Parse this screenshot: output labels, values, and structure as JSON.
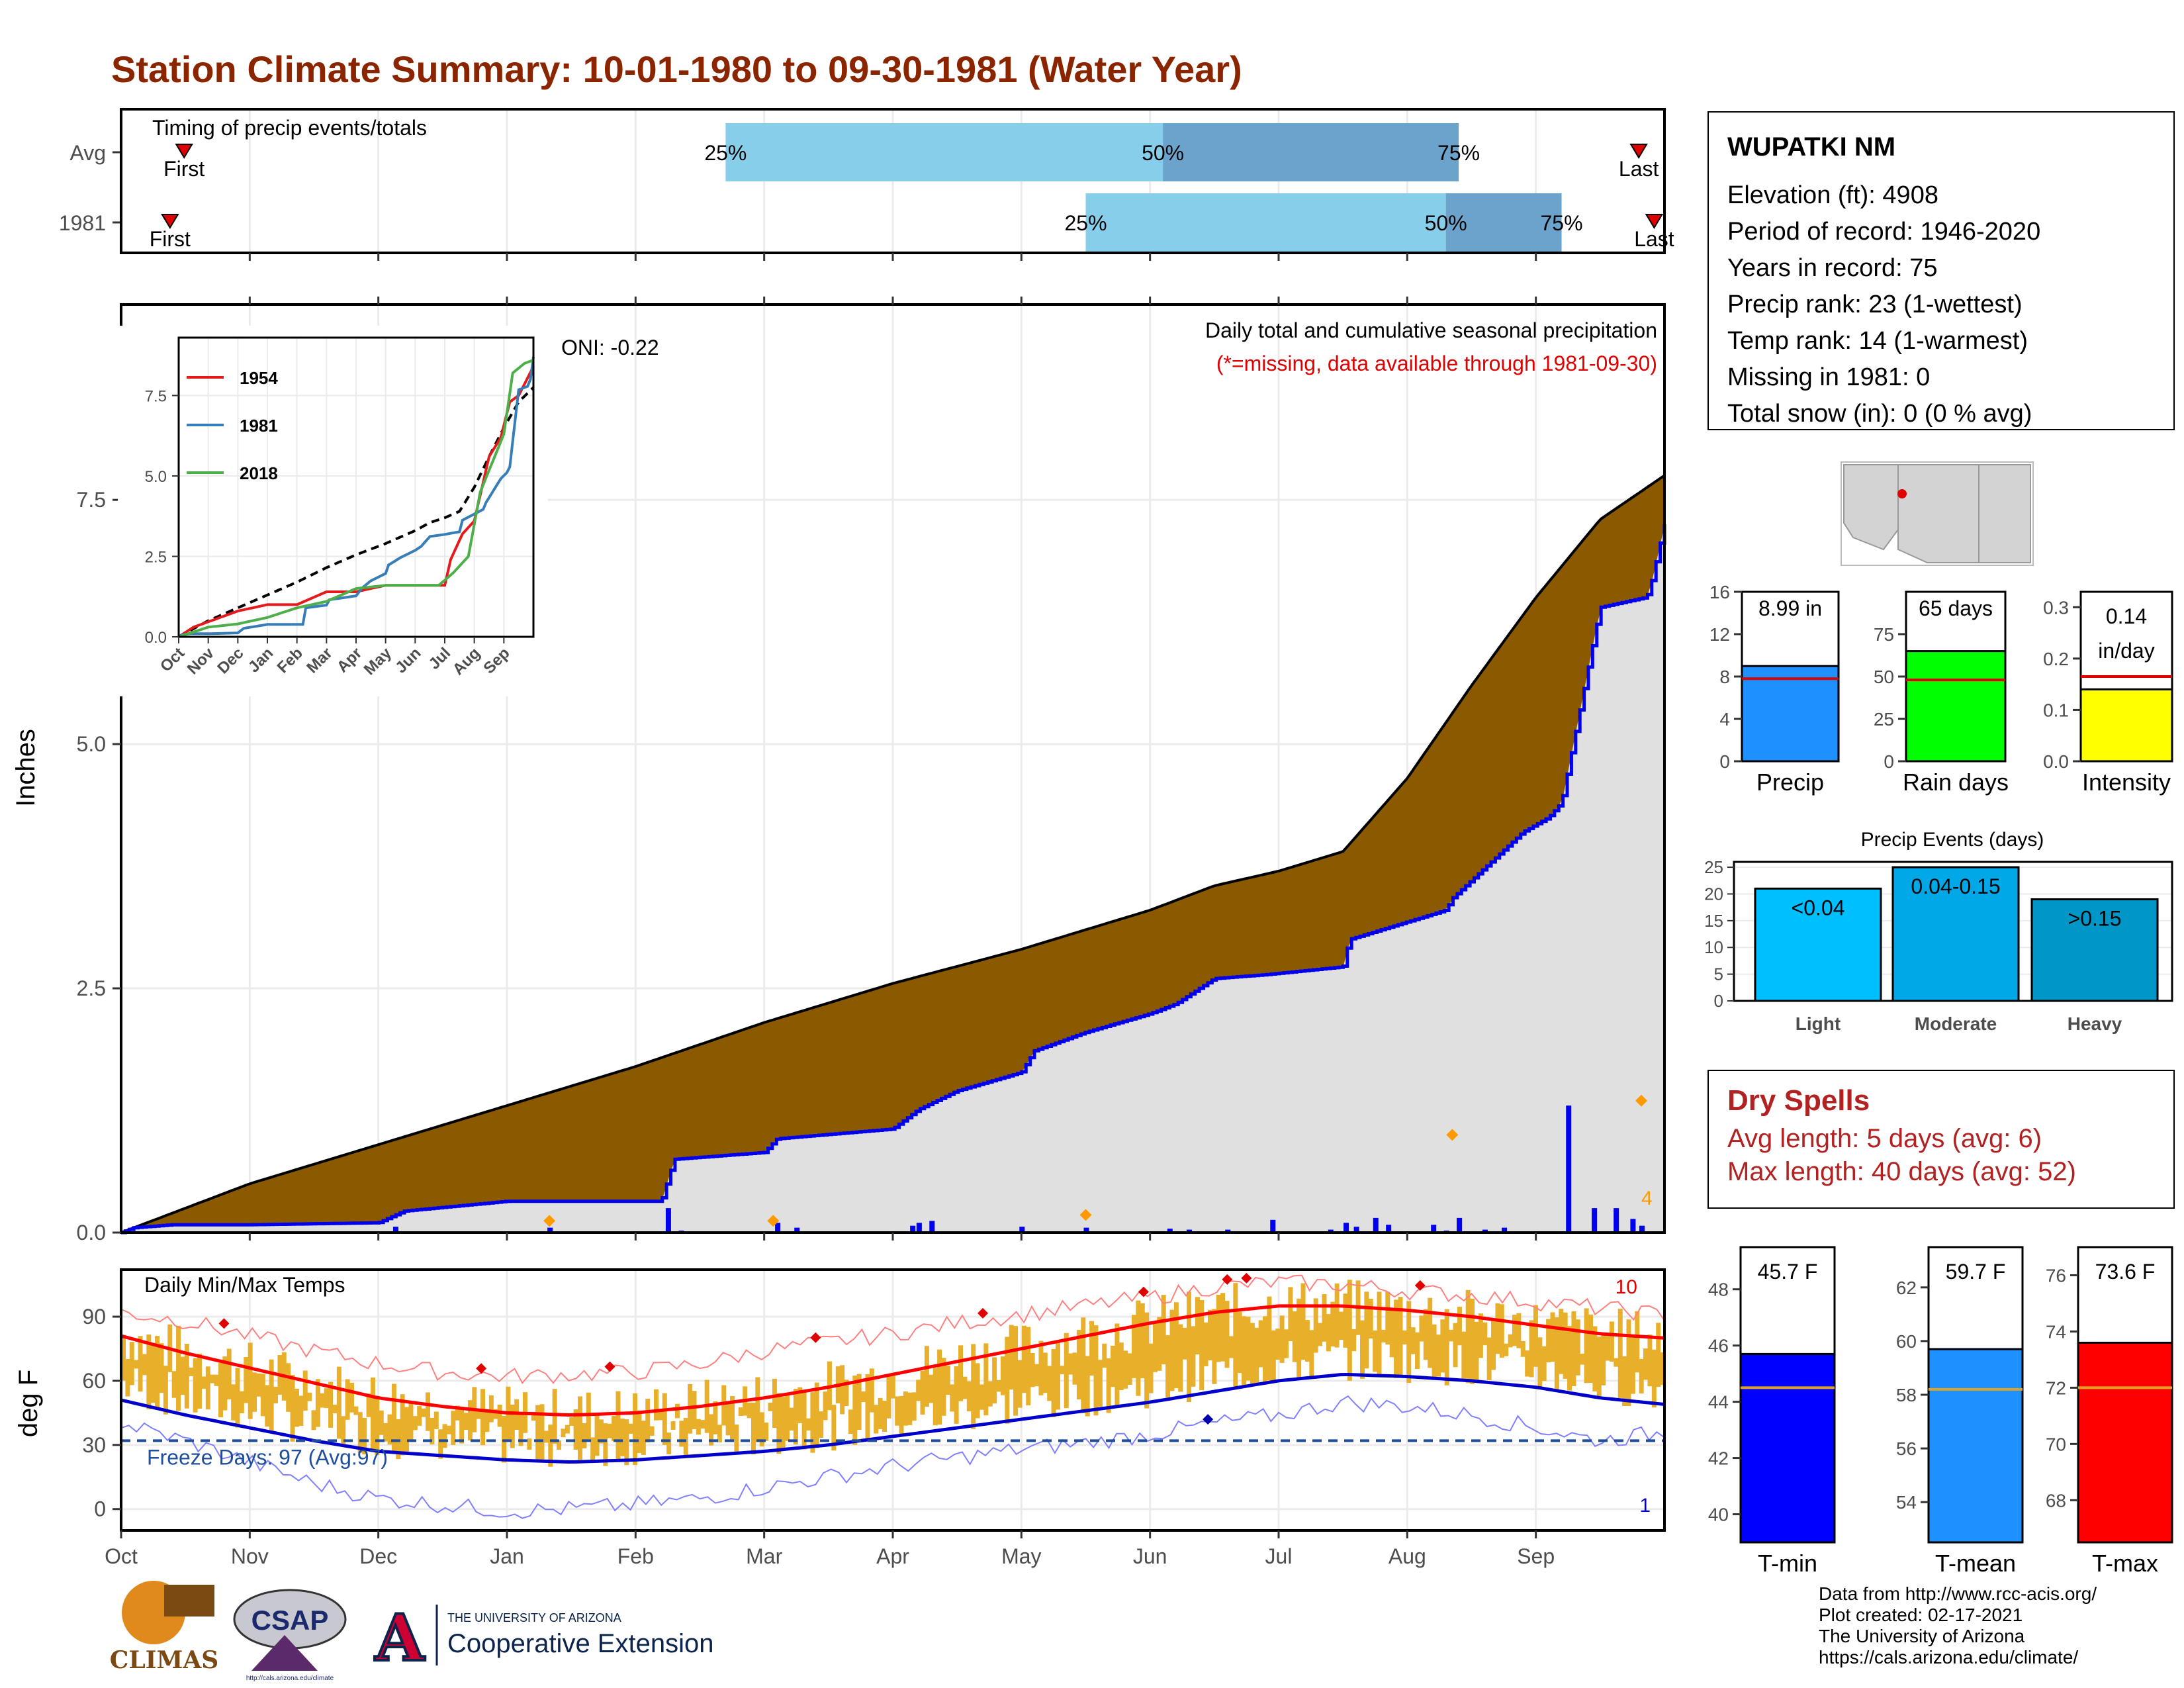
{
  "title": "Station Climate Summary: 10-01-1980 to 09-30-1981 (Water Year)",
  "station": {
    "name": "WUPATKI NM",
    "lines": [
      "Elevation (ft): 4908",
      "Period of record: 1946-2020",
      "Years in record: 75",
      "Precip rank: 23 (1-wettest)",
      "Temp rank: 14 (1-warmest)",
      "Missing in 1981: 0",
      "Total snow (in): 0 (0 % avg)"
    ]
  },
  "colors": {
    "title": "#8b2500",
    "deficit": "#8b5a00",
    "surplus": "#008b00",
    "avg_fill": "#e0e0e0",
    "obs_line": "#0000ee",
    "light_blue": "#87ceeb",
    "mid_blue": "#6ba3cc",
    "tmax": "#ff0000",
    "tmin": "#0000cc",
    "range": "#e8b02a",
    "freeze": "#1f4e9c"
  },
  "timing_panel": {
    "caption": "Timing of precip events/totals",
    "rows": [
      {
        "label": "Avg",
        "first_marker": "First",
        "last_marker": "Last",
        "first": 0.49,
        "p25": 4.7,
        "p50": 8.1,
        "p75": 10.4,
        "last": 11.8,
        "p25_label": "25%",
        "p50_label": "50%",
        "p75_label": "75%"
      },
      {
        "label": "1981",
        "first_marker": "First",
        "last_marker": "Last",
        "first": 0.38,
        "p25": 7.5,
        "p50": 10.3,
        "p75": 11.2,
        "last": 11.92,
        "p25_label": "25%",
        "p50_label": "50%",
        "p75_label": "75%"
      }
    ]
  },
  "precip_panel": {
    "ylabel": "Inches",
    "yticks": [
      "0.0",
      "2.5",
      "5.0",
      "7.5"
    ],
    "ylim": [
      0,
      9.5
    ],
    "oni": "ONI: -0.22",
    "caption1": "Daily total and cumulative seasonal precipitation",
    "caption2": "(*=missing, data available through 1981-09-30)",
    "count_label": "4"
  },
  "inset": {
    "yticks": [
      "0.0",
      "2.5",
      "5.0",
      "7.5"
    ],
    "xticks": [
      "Oct",
      "Nov",
      "Dec",
      "Jan",
      "Feb",
      "Mar",
      "Apr",
      "May",
      "Jun",
      "Jul",
      "Aug",
      "Sep"
    ],
    "legend": [
      {
        "name": "1954",
        "color": "#e41a1c"
      },
      {
        "name": "1981",
        "color": "#377eb8"
      },
      {
        "name": "2018",
        "color": "#4daf4a"
      }
    ]
  },
  "temp_panel": {
    "ylabel": "deg F",
    "caption": "Daily Min/Max Temps",
    "yticks": [
      "0",
      "30",
      "60",
      "90"
    ],
    "ylim": [
      -10,
      112
    ],
    "freeze_label": "Freeze Days: 97 (Avg:97)",
    "freeze_value": 32,
    "count_high": "10",
    "count_low": "1"
  },
  "months": [
    "Oct",
    "Nov",
    "Dec",
    "Jan",
    "Feb",
    "Mar",
    "Apr",
    "May",
    "Jun",
    "Jul",
    "Aug",
    "Sep"
  ],
  "summary_bars": [
    {
      "value_label": "8.99 in",
      "name": "Precip",
      "value": 8.99,
      "avg": 7.8,
      "ymax": 16,
      "ticks": [
        "0",
        "4",
        "8",
        "12",
        "16"
      ],
      "color": "#1e90ff"
    },
    {
      "value_label": "65 days",
      "name": "Rain days",
      "value": 65,
      "avg": 48,
      "ymax": 100,
      "ticks": [
        "0",
        "25",
        "50",
        "75"
      ],
      "color": "#00ff00"
    },
    {
      "value_label": "0.14 in/day",
      "name": "Intensity",
      "value": 0.14,
      "avg": 0.165,
      "ymax": 0.33,
      "ticks": [
        "0.0",
        "0.1",
        "0.2",
        "0.3"
      ],
      "color": "#ffff00"
    }
  ],
  "precip_events": {
    "title": "Precip Events (days)",
    "yticks": [
      "0",
      "5",
      "10",
      "15",
      "20",
      "25"
    ],
    "bars": [
      {
        "category": "Light",
        "label": "<0.04",
        "value": 21,
        "color": "#00bfff"
      },
      {
        "category": "Moderate",
        "label": "0.04-0.15",
        "value": 25,
        "color": "#00a8e8"
      },
      {
        "category": "Heavy",
        "label": ">0.15",
        "value": 19,
        "color": "#0096c8"
      }
    ]
  },
  "dry_spells": {
    "title": "Dry Spells",
    "avg_line": "Avg length: 5 days (avg: 6)",
    "max_line": "Max length: 40 days (avg: 52)"
  },
  "temp_bars": [
    {
      "value_label": "45.7 F",
      "name": "T-min",
      "value": 45.7,
      "avg": 44.5,
      "ymin": 39,
      "ymax": 49.5,
      "ticks": [
        "40",
        "42",
        "44",
        "46",
        "48"
      ],
      "color": "#0000ff"
    },
    {
      "value_label": "59.7 F",
      "name": "T-mean",
      "value": 59.7,
      "avg": 58.2,
      "ymin": 52.5,
      "ymax": 63.5,
      "ticks": [
        "54",
        "56",
        "58",
        "60",
        "62"
      ],
      "color": "#1e90ff"
    },
    {
      "value_label": "73.6 F",
      "name": "T-max",
      "value": 73.6,
      "avg": 72.0,
      "ymin": 66.5,
      "ymax": 77,
      "ticks": [
        "68",
        "70",
        "72",
        "74",
        "76"
      ],
      "color": "#ff0000"
    }
  ],
  "logos": {
    "climas": "CLIMAS",
    "csap": "CSAP",
    "csap_url": "http://cals.arizona.edu/climate",
    "ua_small": "THE UNIVERSITY OF ARIZONA",
    "ua_big": "Cooperative Extension"
  },
  "footer": [
    "Data from http://www.rcc-acis.org/",
    "Plot created: 02-17-2021",
    "The University of Arizona",
    "https://cals.arizona.edu/climate/"
  ],
  "chart_data": [
    {
      "type": "area",
      "title": "Daily total and cumulative seasonal precipitation",
      "ylabel": "Inches",
      "ylim": [
        0,
        9.5
      ],
      "x_unit": "month of water year (0 = Oct 1)",
      "series": [
        {
          "name": "Average cumulative",
          "x": [
            0,
            0.5,
            1,
            2,
            3,
            4,
            5,
            5.5,
            6,
            7,
            7.5,
            8,
            8.5,
            9,
            9.5,
            10,
            10.5,
            11,
            11.5,
            12
          ],
          "y": [
            0,
            0.25,
            0.5,
            0.9,
            1.3,
            1.7,
            2.15,
            2.35,
            2.55,
            2.9,
            3.1,
            3.3,
            3.55,
            3.7,
            3.9,
            4.65,
            5.6,
            6.5,
            7.3,
            7.75
          ]
        },
        {
          "name": "1981 cumulative",
          "x": [
            0,
            0.1,
            0.4,
            1,
            2,
            2.2,
            3,
            3.3,
            4.2,
            4.3,
            5,
            5.1,
            6,
            6.2,
            6.5,
            7,
            7.1,
            7.5,
            8,
            8.2,
            8.5,
            8.9,
            9.5,
            9.55,
            10.3,
            10.35,
            10.9,
            11.1,
            11.2,
            11.5,
            11.85,
            11.88,
            12
          ],
          "y": [
            0,
            0.05,
            0.08,
            0.08,
            0.1,
            0.22,
            0.32,
            0.32,
            0.32,
            0.75,
            0.82,
            0.96,
            1.06,
            1.26,
            1.45,
            1.64,
            1.86,
            2.05,
            2.24,
            2.34,
            2.6,
            2.64,
            2.72,
            3.0,
            3.3,
            3.42,
            4.1,
            4.25,
            4.4,
            6.4,
            6.5,
            6.55,
            7.25
          ]
        }
      ],
      "daily_bars": {
        "x": [
          2.13,
          3.33,
          4.25,
          4.35,
          5.1,
          5.25,
          6.15,
          6.2,
          6.3,
          7.0,
          7.5,
          8.15,
          8.3,
          8.6,
          8.95,
          9.4,
          9.52,
          9.6,
          9.75,
          9.85,
          10.2,
          10.3,
          10.4,
          10.6,
          10.75,
          11.25,
          11.45,
          11.62,
          11.75,
          11.82
        ],
        "y": [
          0.06,
          0.05,
          0.25,
          0.02,
          0.1,
          0.05,
          0.07,
          0.1,
          0.12,
          0.06,
          0.05,
          0.04,
          0.03,
          0.03,
          0.13,
          0.03,
          0.1,
          0.06,
          0.15,
          0.08,
          0.08,
          0.02,
          0.15,
          0.03,
          0.05,
          1.3,
          0.25,
          0.25,
          0.14,
          0.07
        ]
      },
      "max_markers": {
        "x": [
          3.33,
          5.07,
          7.5,
          10.35,
          11.82
        ],
        "y": [
          0.12,
          0.12,
          0.18,
          1.0,
          1.35
        ]
      }
    },
    {
      "type": "line",
      "title": "Daily Min/Max Temps",
      "ylabel": "deg F",
      "ylim": [
        -10,
        112
      ],
      "x_unit": "month of water year (0 = Oct 1)",
      "x": [
        0,
        0.5,
        1,
        1.5,
        2,
        2.5,
        3,
        3.5,
        4,
        4.5,
        5,
        5.5,
        6,
        6.5,
        7,
        7.5,
        8,
        8.5,
        9,
        9.5,
        10,
        10.5,
        11,
        11.5,
        12
      ],
      "series": [
        {
          "name": "Avg max",
          "values": [
            81,
            73,
            66,
            59,
            52,
            48,
            45,
            44,
            45,
            48,
            52,
            57,
            63,
            69,
            75,
            81,
            87,
            92,
            95,
            95,
            93,
            90,
            86,
            82,
            80
          ]
        },
        {
          "name": "Avg min",
          "values": [
            51,
            44,
            38,
            32,
            27,
            25,
            23,
            22,
            23,
            25,
            27,
            30,
            34,
            38,
            42,
            46,
            50,
            55,
            60,
            63,
            62,
            60,
            57,
            52,
            49
          ]
        },
        {
          "name": "Record high",
          "values": [
            92,
            88,
            81,
            74,
            68,
            64,
            62,
            63,
            64,
            68,
            74,
            78,
            82,
            87,
            91,
            95,
            99,
            104,
            106,
            105,
            102,
            100,
            97,
            94,
            91
          ]
        },
        {
          "name": "Record low",
          "values": [
            40,
            32,
            22,
            12,
            5,
            2,
            -1,
            0,
            2,
            5,
            10,
            15,
            20,
            24,
            28,
            31,
            35,
            40,
            44,
            50,
            48,
            44,
            38,
            32,
            36
          ]
        }
      ]
    }
  ]
}
